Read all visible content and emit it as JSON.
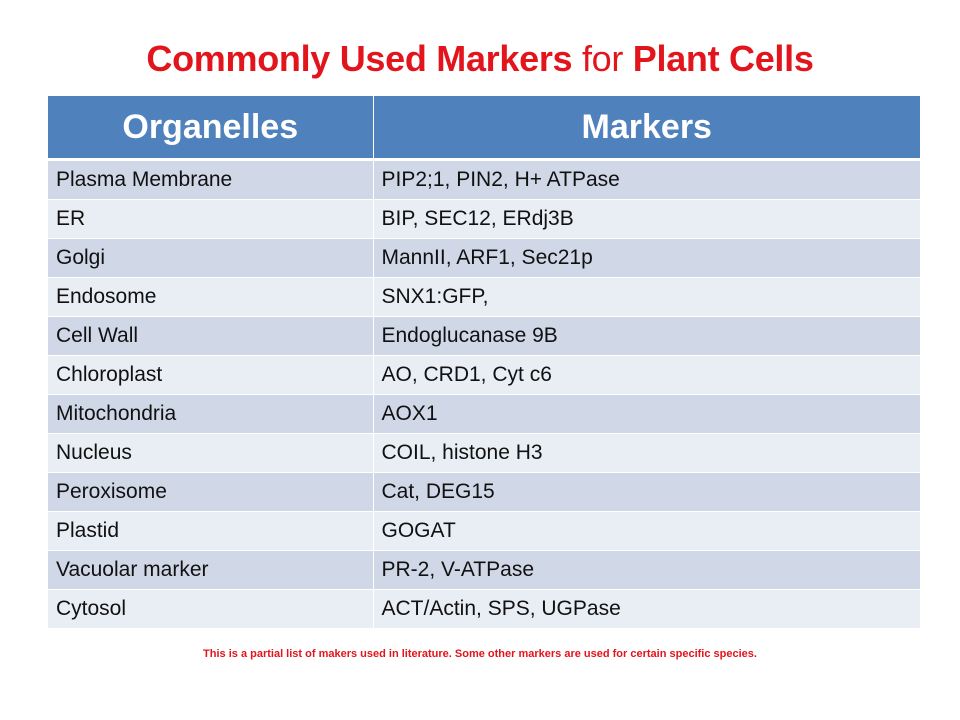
{
  "title": {
    "part1": "Commonly Used Markers ",
    "part2": "for",
    "part3": " Plant Cells"
  },
  "table": {
    "headers": [
      "Organelles",
      "Markers"
    ],
    "rows": [
      [
        "Plasma Membrane",
        "PIP2;1, PIN2, H+ ATPase"
      ],
      [
        "ER",
        "BIP, SEC12, ERdj3B"
      ],
      [
        "Golgi",
        "MannII, ARF1, Sec21p"
      ],
      [
        "Endosome",
        "SNX1:GFP,"
      ],
      [
        "Cell Wall",
        "Endoglucanase 9B"
      ],
      [
        "Chloroplast",
        "AO, CRD1, Cyt c6"
      ],
      [
        "Mitochondria",
        "AOX1"
      ],
      [
        "Nucleus",
        "COIL, histone H3"
      ],
      [
        "Peroxisome",
        "Cat, DEG15"
      ],
      [
        "Plastid",
        "GOGAT"
      ],
      [
        "Vacuolar marker",
        "PR-2, V-ATPase"
      ],
      [
        "Cytosol",
        "ACT/Actin, SPS, UGPase"
      ]
    ]
  },
  "footnote": "This is a partial list of makers  used in literature.  Some other markers are used for certain specific  species.",
  "colors": {
    "title": "#e2141c",
    "header_bg": "#4f81bd",
    "row_odd": "#d0d8e8",
    "row_even": "#e9edf4"
  }
}
